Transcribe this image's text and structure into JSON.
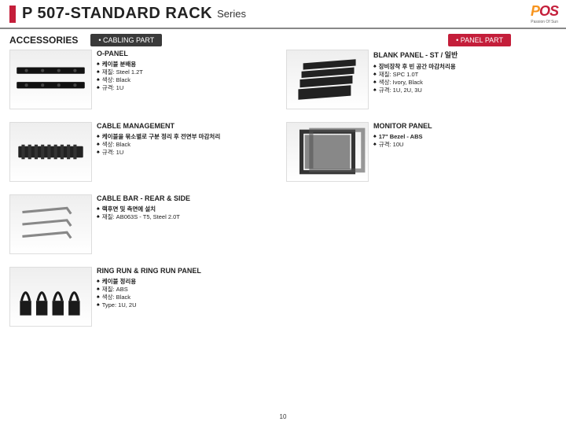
{
  "header": {
    "title_main": "P 507-STANDARD RACK",
    "title_sub": "Series",
    "logo_text": "POS",
    "logo_tagline": "Passion Of Sun"
  },
  "section": {
    "label": "ACCESSORIES",
    "pill_left": "• CABLING PART",
    "pill_right": "• PANEL PART"
  },
  "left": [
    {
      "title": "O-PANEL",
      "specs": [
        {
          "t": "케이블 분배용",
          "bold": true
        },
        {
          "t": "재질: Steel 1.2T"
        },
        {
          "t": "색상: Black"
        },
        {
          "t": "규격: 1U"
        }
      ],
      "svg": "opanel"
    },
    {
      "title": "CABLE MANAGEMENT",
      "specs": [
        {
          "t": "케이블을 묶소별로 구분 정리 후 전면부 마감처리",
          "bold": true
        },
        {
          "t": "색상: Black"
        },
        {
          "t": "규격: 1U"
        }
      ],
      "svg": "cablemgmt"
    },
    {
      "title": "CABLE BAR - REAR & SIDE",
      "specs": [
        {
          "t": "랙후면 및 측면에 설치",
          "bold": true
        },
        {
          "t": "재질: AB063S - T5, Steel 2.0T"
        }
      ],
      "svg": "cablebar"
    },
    {
      "title": "RING RUN  & RING RUN PANEL",
      "specs": [
        {
          "t": "케이블 정리용",
          "bold": true
        },
        {
          "t": "재질: ABS"
        },
        {
          "t": "색상: Black"
        },
        {
          "t": "Type: 1U, 2U"
        }
      ],
      "svg": "ringrun"
    }
  ],
  "right": [
    {
      "title": "BLANK PANEL - ST / 일반",
      "specs": [
        {
          "t": "장비장착 후 빈 공간 마감처리용",
          "bold": true
        },
        {
          "t": "재질: SPC 1.0T"
        },
        {
          "t": "색상: Ivory, Black"
        },
        {
          "t": "규격: 1U, 2U, 3U"
        }
      ],
      "svg": "blank"
    },
    {
      "title": "MONITOR PANEL",
      "specs": [
        {
          "t": "17\" Bezel - ABS",
          "bold": true
        },
        {
          "t": "규격: 10U"
        }
      ],
      "svg": "monitor"
    }
  ],
  "pagenum": "10"
}
